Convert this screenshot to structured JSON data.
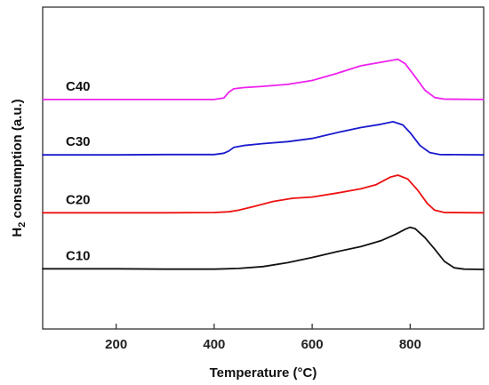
{
  "chart_data": {
    "type": "line",
    "xlabel": "Temperature (°C)",
    "ylabel_main": "H",
    "ylabel_sub": "2",
    "ylabel_rest": " consumption (a.u.)",
    "xlim": [
      50,
      950
    ],
    "ylim": [
      0,
      100
    ],
    "x_ticks": [
      200,
      400,
      600,
      800
    ],
    "y_ticks_labeled": false,
    "grid": false,
    "legend": "none",
    "series": [
      {
        "name": "C40",
        "color": "#ee22ee",
        "points": [
          [
            50,
            71.3
          ],
          [
            200,
            71.3
          ],
          [
            300,
            71.3
          ],
          [
            400,
            71.3
          ],
          [
            420,
            71.8
          ],
          [
            430,
            73.6
          ],
          [
            440,
            74.6
          ],
          [
            460,
            75.0
          ],
          [
            500,
            75.4
          ],
          [
            550,
            76.0
          ],
          [
            600,
            77.2
          ],
          [
            650,
            79.4
          ],
          [
            700,
            81.8
          ],
          [
            730,
            82.6
          ],
          [
            760,
            83.4
          ],
          [
            775,
            83.8
          ],
          [
            790,
            82.4
          ],
          [
            810,
            78.4
          ],
          [
            830,
            74.2
          ],
          [
            850,
            71.9
          ],
          [
            870,
            71.4
          ],
          [
            950,
            71.3
          ]
        ]
      },
      {
        "name": "C30",
        "color": "#1a1acc",
        "points": [
          [
            50,
            54.1
          ],
          [
            200,
            54.1
          ],
          [
            300,
            54.2
          ],
          [
            400,
            54.2
          ],
          [
            420,
            54.6
          ],
          [
            430,
            55.3
          ],
          [
            440,
            56.4
          ],
          [
            460,
            57.0
          ],
          [
            500,
            57.6
          ],
          [
            550,
            58.2
          ],
          [
            600,
            59.2
          ],
          [
            650,
            61.0
          ],
          [
            700,
            62.6
          ],
          [
            740,
            63.6
          ],
          [
            765,
            64.4
          ],
          [
            785,
            63.4
          ],
          [
            800,
            61.0
          ],
          [
            820,
            57.0
          ],
          [
            840,
            54.8
          ],
          [
            860,
            54.2
          ],
          [
            950,
            54.1
          ]
        ]
      },
      {
        "name": "C20",
        "color": "#ee1111",
        "points": [
          [
            50,
            36.1
          ],
          [
            200,
            36.1
          ],
          [
            300,
            36.1
          ],
          [
            400,
            36.2
          ],
          [
            430,
            36.4
          ],
          [
            450,
            36.9
          ],
          [
            480,
            38.0
          ],
          [
            520,
            39.6
          ],
          [
            560,
            40.6
          ],
          [
            600,
            41.0
          ],
          [
            650,
            42.2
          ],
          [
            700,
            43.6
          ],
          [
            730,
            44.8
          ],
          [
            760,
            47.2
          ],
          [
            775,
            47.8
          ],
          [
            795,
            46.6
          ],
          [
            815,
            43.2
          ],
          [
            835,
            39.0
          ],
          [
            850,
            36.9
          ],
          [
            870,
            36.2
          ],
          [
            950,
            36.1
          ]
        ]
      },
      {
        "name": "C10",
        "color": "#111111",
        "points": [
          [
            50,
            18.7
          ],
          [
            200,
            18.7
          ],
          [
            300,
            18.6
          ],
          [
            400,
            18.6
          ],
          [
            450,
            18.8
          ],
          [
            500,
            19.4
          ],
          [
            550,
            20.6
          ],
          [
            600,
            22.2
          ],
          [
            650,
            24.0
          ],
          [
            700,
            25.6
          ],
          [
            740,
            27.4
          ],
          [
            770,
            29.4
          ],
          [
            790,
            31.0
          ],
          [
            800,
            31.6
          ],
          [
            810,
            31.2
          ],
          [
            830,
            28.4
          ],
          [
            850,
            24.8
          ],
          [
            870,
            21.0
          ],
          [
            890,
            19.0
          ],
          [
            910,
            18.6
          ],
          [
            950,
            18.5
          ]
        ]
      }
    ]
  }
}
